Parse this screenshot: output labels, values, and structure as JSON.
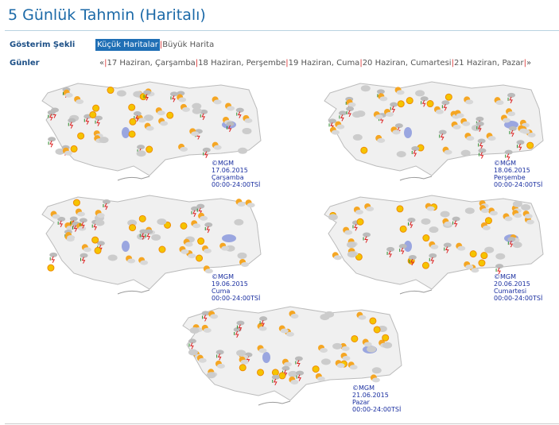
{
  "title": "5 Günlük Tahmin (Haritalı)",
  "display": {
    "label": "Gösterim Şekli",
    "options": [
      "Küçük Haritalar",
      "Büyük Harita"
    ],
    "selected": "Küçük Haritalar"
  },
  "days": {
    "label": "Günler",
    "prev": "«",
    "next": "»",
    "items": [
      "17 Haziran, Çarşamba",
      "18 Haziran, Perşembe",
      "19 Haziran, Cuma",
      "20 Haziran, Cumartesi",
      "21 Haziran, Pazar"
    ]
  },
  "maps": [
    {
      "copyright": "©MGM",
      "date": "17.06.2015",
      "day": "Çarşamba",
      "time": "00:00-24:00TSİ"
    },
    {
      "copyright": "©MGM",
      "date": "18.06.2015",
      "day": "Perşembe",
      "time": "00:00-24:00TSİ"
    },
    {
      "copyright": "©MGM",
      "date": "19.06.2015",
      "day": "Cuma",
      "time": "00:00-24:00TSİ"
    },
    {
      "copyright": "©MGM",
      "date": "20.06.2015",
      "day": "Cumartesi",
      "time": "00:00-24:00TSİ"
    },
    {
      "copyright": "©MGM",
      "date": "21.06.2015",
      "day": "Pazar",
      "time": "00:00-24:00TSİ"
    }
  ],
  "colors": {
    "title": "#1c6aa8",
    "selected": "#1f6fb5",
    "separator": "#dd3333",
    "caption": "#1a2fa0"
  }
}
